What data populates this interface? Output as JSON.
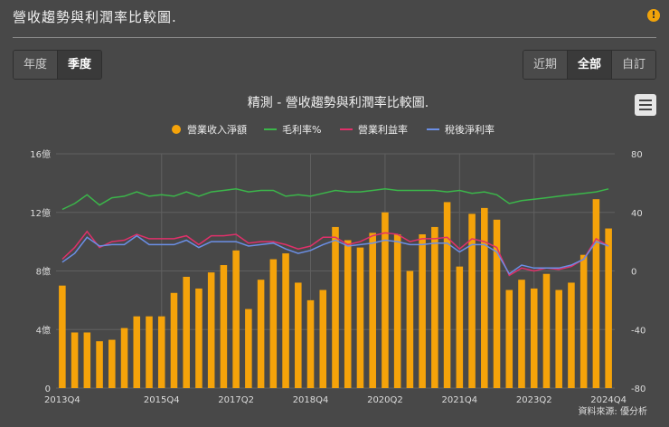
{
  "page": {
    "title": "營收趨勢與利潤率比較圖.",
    "info_icon": "!"
  },
  "period_tabs": [
    {
      "label": "年度",
      "active": false
    },
    {
      "label": "季度",
      "active": true
    }
  ],
  "range_tabs": [
    {
      "label": "近期",
      "active": false
    },
    {
      "label": "全部",
      "active": true
    },
    {
      "label": "自訂",
      "active": false
    }
  ],
  "credit": "資料來源: 優分析",
  "colors": {
    "bar": "#f5a30a",
    "gross": "#3bb64a",
    "operating": "#e0306a",
    "net": "#6b8fe6",
    "grid": "#606060",
    "axis_text": "#dddddd"
  },
  "chart_data": {
    "type": "bar+line",
    "title": "精測 - 營收趨勢與利潤率比較圖.",
    "legend": [
      "營業收入淨額",
      "毛利率%",
      "營業利益率",
      "稅後淨利率"
    ],
    "legend_position": "top",
    "left_axis": {
      "ticks": [
        "0",
        "4億",
        "8億",
        "12億",
        "16億"
      ],
      "range": [
        0,
        16
      ]
    },
    "right_axis": {
      "ticks": [
        "-80",
        "-40",
        "0",
        "40",
        "80"
      ],
      "range": [
        -80,
        80
      ]
    },
    "x_tick_labels": [
      "2013Q4",
      "2015Q4",
      "2017Q2",
      "2018Q4",
      "2020Q2",
      "2021Q4",
      "2023Q2",
      "2024Q4"
    ],
    "categories": [
      "2013Q4",
      "2014Q1",
      "2014Q2",
      "2014Q3",
      "2014Q4",
      "2015Q1",
      "2015Q2",
      "2015Q3",
      "2015Q4",
      "2016Q1",
      "2016Q2",
      "2016Q3",
      "2016Q4",
      "2017Q1",
      "2017Q2",
      "2017Q3",
      "2017Q4",
      "2018Q1",
      "2018Q2",
      "2018Q3",
      "2018Q4",
      "2019Q1",
      "2019Q2",
      "2019Q3",
      "2019Q4",
      "2020Q1",
      "2020Q2",
      "2020Q3",
      "2020Q4",
      "2021Q1",
      "2021Q2",
      "2021Q3",
      "2021Q4",
      "2022Q1",
      "2022Q2",
      "2022Q3",
      "2022Q4",
      "2023Q1",
      "2023Q2",
      "2023Q3",
      "2023Q4",
      "2024Q1",
      "2024Q2",
      "2024Q3",
      "2024Q4"
    ],
    "series": [
      {
        "name": "營業收入淨額",
        "axis": "left",
        "unit": "億",
        "values": [
          7.0,
          3.8,
          3.8,
          3.2,
          3.3,
          4.1,
          4.9,
          4.9,
          4.9,
          6.5,
          7.6,
          6.8,
          7.9,
          8.4,
          9.4,
          5.4,
          7.4,
          8.8,
          9.2,
          7.2,
          6.0,
          6.7,
          11.0,
          10.1,
          9.6,
          10.6,
          12.0,
          10.5,
          8.0,
          10.5,
          11.0,
          12.7,
          8.3,
          11.9,
          12.3,
          11.5,
          6.7,
          7.4,
          6.8,
          7.8,
          6.7,
          7.2,
          9.1,
          12.9,
          10.9
        ]
      },
      {
        "name": "毛利率%",
        "axis": "right",
        "values": [
          42,
          46,
          52,
          45,
          50,
          51,
          54,
          51,
          52,
          51,
          54,
          51,
          54,
          55,
          56,
          54,
          55,
          55,
          51,
          52,
          51,
          53,
          55,
          54,
          54,
          55,
          56,
          55,
          55,
          55,
          55,
          54,
          55,
          53,
          54,
          52,
          46,
          48,
          49,
          50,
          51,
          52,
          53,
          54,
          56
        ]
      },
      {
        "name": "營業利益率",
        "axis": "right",
        "values": [
          8,
          16,
          27,
          16,
          20,
          21,
          25,
          22,
          22,
          22,
          24,
          18,
          24,
          24,
          25,
          19,
          20,
          20,
          18,
          15,
          17,
          23,
          23,
          18,
          20,
          24,
          26,
          25,
          20,
          22,
          22,
          23,
          15,
          22,
          20,
          16,
          -3,
          2,
          0,
          2,
          1,
          3,
          8,
          22,
          17
        ]
      },
      {
        "name": "稅後淨利率",
        "axis": "right",
        "values": [
          6,
          12,
          23,
          17,
          18,
          18,
          24,
          18,
          18,
          18,
          21,
          16,
          20,
          20,
          20,
          17,
          18,
          19,
          15,
          12,
          14,
          18,
          21,
          17,
          18,
          19,
          21,
          20,
          18,
          18,
          19,
          19,
          13,
          18,
          18,
          13,
          -2,
          4,
          2,
          2,
          2,
          4,
          8,
          20,
          17
        ]
      }
    ]
  }
}
